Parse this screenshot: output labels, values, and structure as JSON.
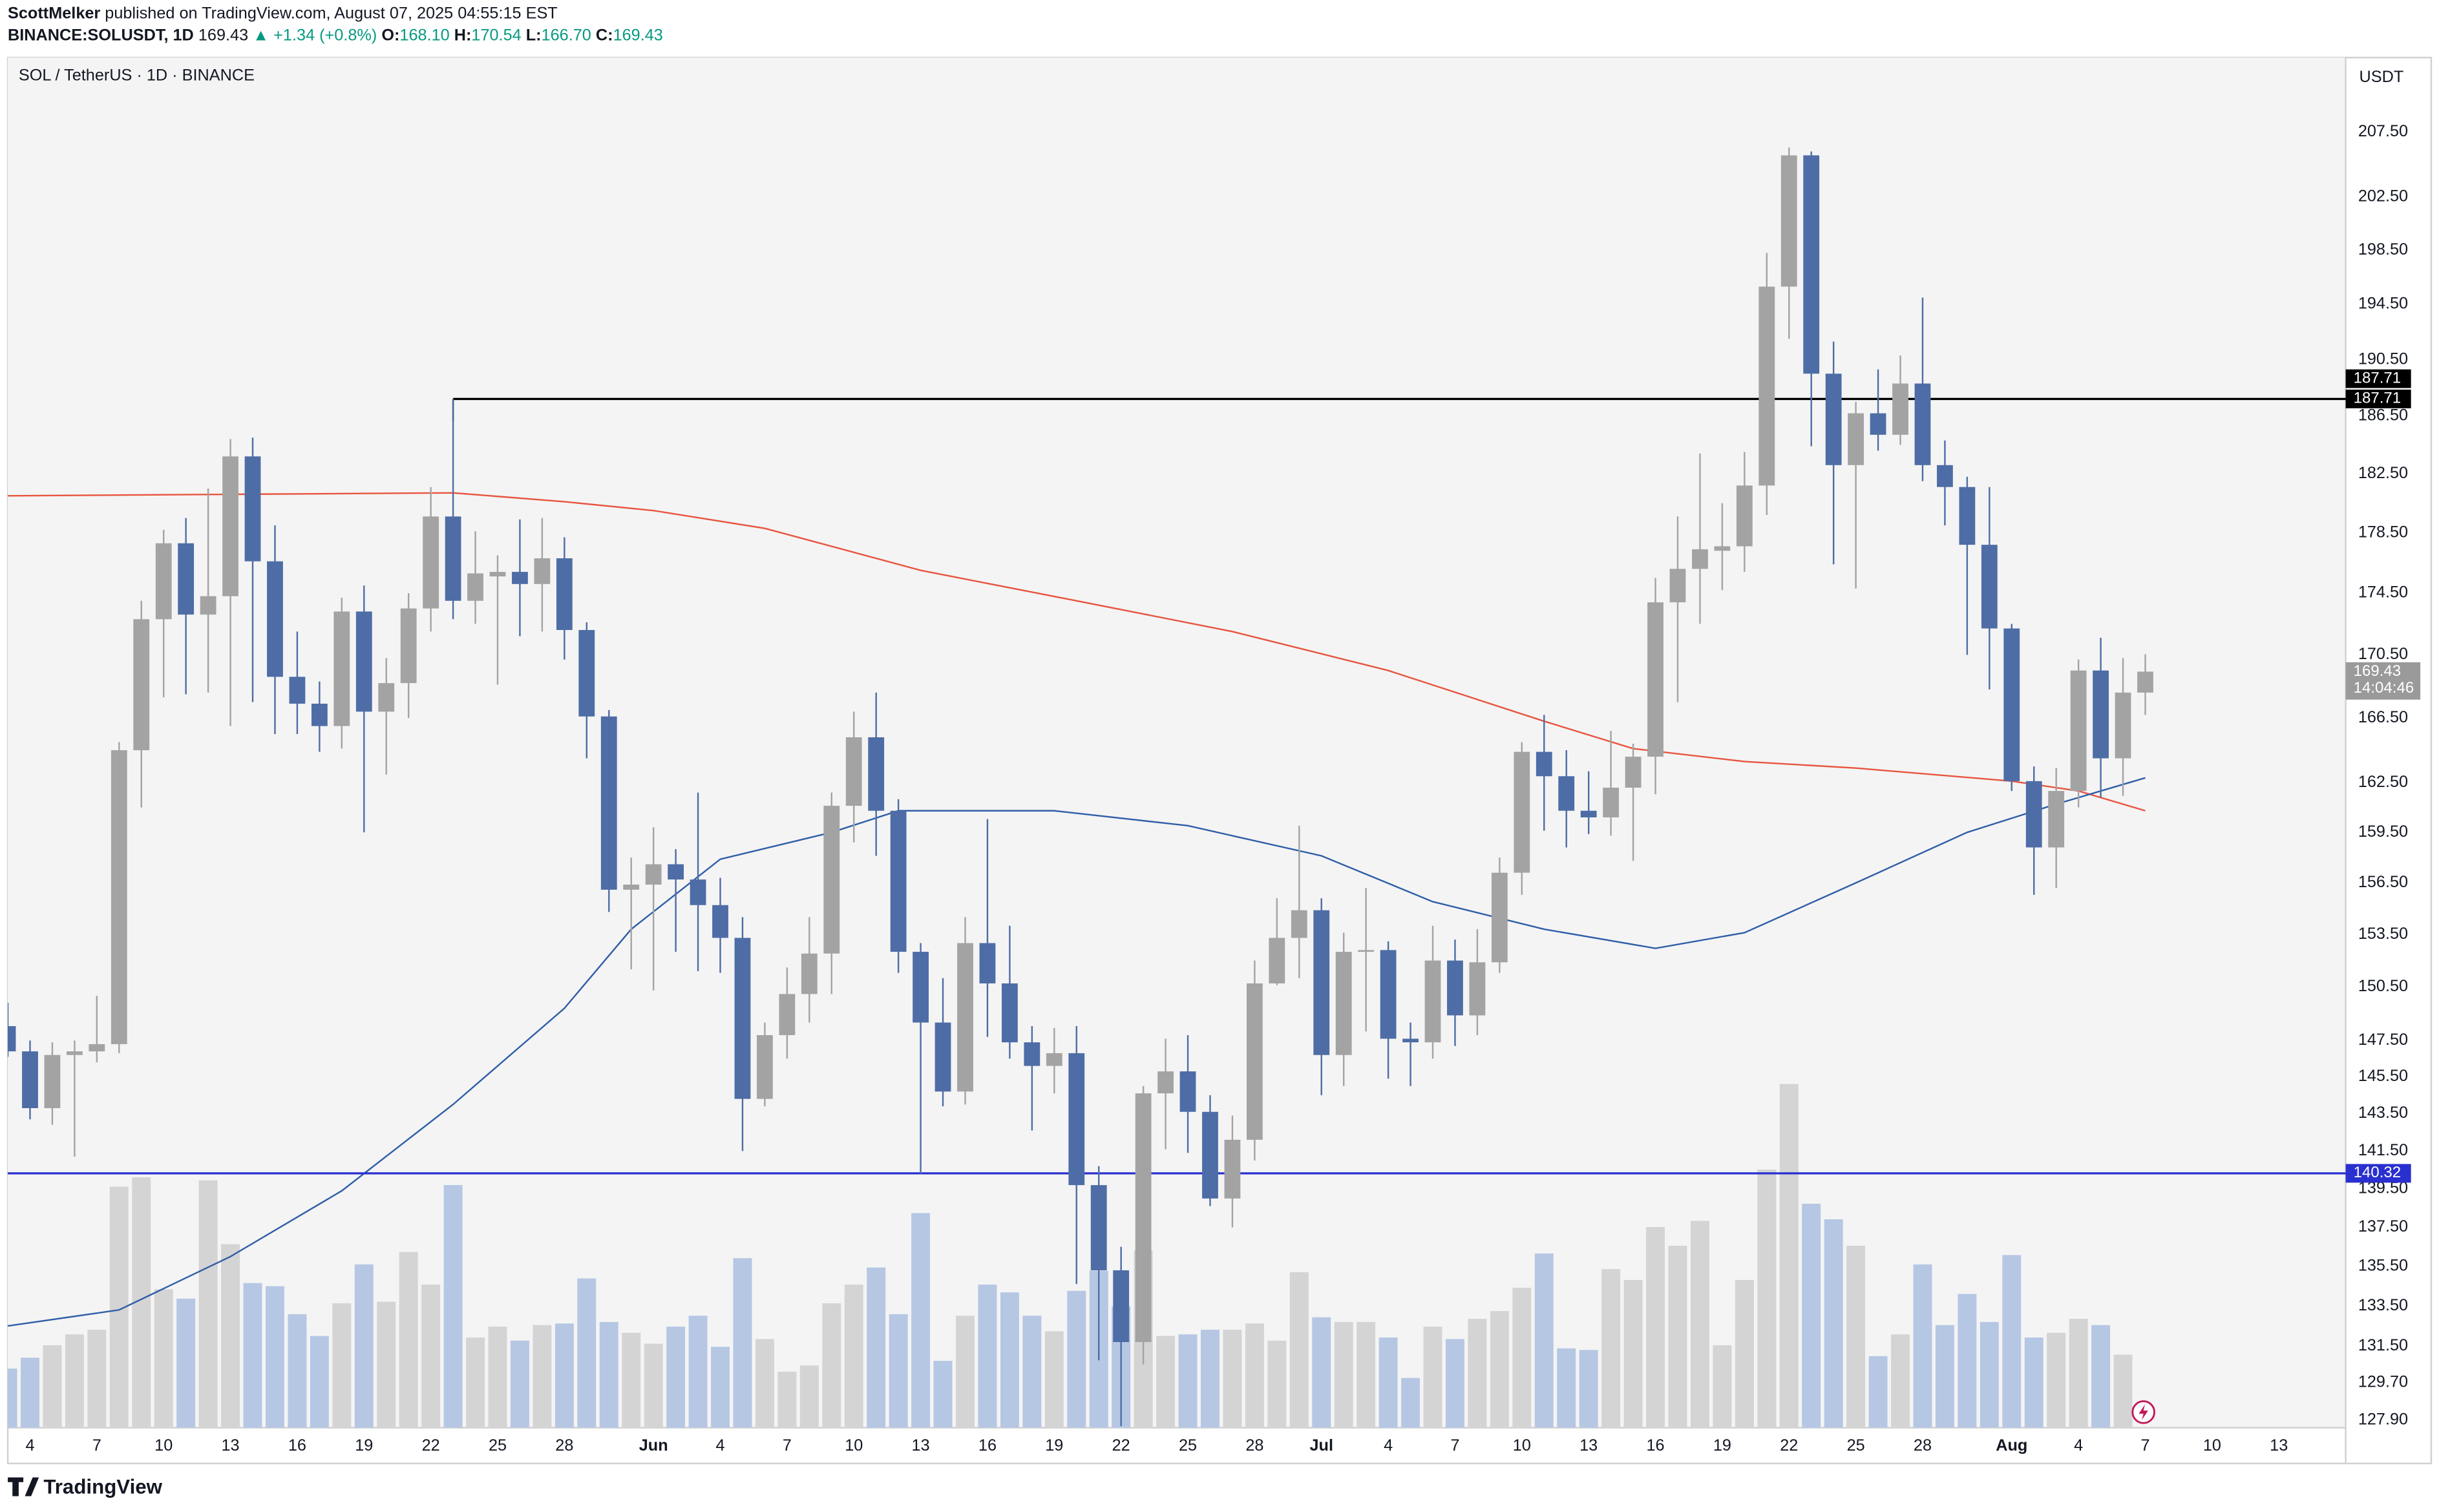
{
  "header": {
    "author": "ScottMelker",
    "published": "published on TradingView.com, August 07, 2025 04:55:15 EST",
    "symbol": "BINANCE:SOLUSDT, 1D",
    "last": "169.43",
    "change": "▲ +1.34 (+0.8%)",
    "ohlc": [
      {
        "label": "O:",
        "value": "168.10"
      },
      {
        "label": "H:",
        "value": "170.54"
      },
      {
        "label": "L:",
        "value": "166.70"
      },
      {
        "label": "C:",
        "value": "169.43"
      }
    ]
  },
  "chart_data": {
    "type": "candlestick",
    "title": "SOL / TetherUS · 1D · BINANCE",
    "axis_unit": "USDT",
    "x": [
      "2025-05-03",
      "2025-05-04",
      "2025-05-05",
      "2025-05-06",
      "2025-05-07",
      "2025-05-08",
      "2025-05-09",
      "2025-05-10",
      "2025-05-11",
      "2025-05-12",
      "2025-05-13",
      "2025-05-14",
      "2025-05-15",
      "2025-05-16",
      "2025-05-17",
      "2025-05-18",
      "2025-05-19",
      "2025-05-20",
      "2025-05-21",
      "2025-05-22",
      "2025-05-23",
      "2025-05-24",
      "2025-05-25",
      "2025-05-26",
      "2025-05-27",
      "2025-05-28",
      "2025-05-29",
      "2025-05-30",
      "2025-05-31",
      "2025-06-01",
      "2025-06-02",
      "2025-06-03",
      "2025-06-04",
      "2025-06-05",
      "2025-06-06",
      "2025-06-07",
      "2025-06-08",
      "2025-06-09",
      "2025-06-10",
      "2025-06-11",
      "2025-06-12",
      "2025-06-13",
      "2025-06-14",
      "2025-06-15",
      "2025-06-16",
      "2025-06-17",
      "2025-06-18",
      "2025-06-19",
      "2025-06-20",
      "2025-06-21",
      "2025-06-22",
      "2025-06-23",
      "2025-06-24",
      "2025-06-25",
      "2025-06-26",
      "2025-06-27",
      "2025-06-28",
      "2025-06-29",
      "2025-06-30",
      "2025-07-01",
      "2025-07-02",
      "2025-07-03",
      "2025-07-04",
      "2025-07-05",
      "2025-07-06",
      "2025-07-07",
      "2025-07-08",
      "2025-07-09",
      "2025-07-10",
      "2025-07-11",
      "2025-07-12",
      "2025-07-13",
      "2025-07-14",
      "2025-07-15",
      "2025-07-16",
      "2025-07-17",
      "2025-07-18",
      "2025-07-19",
      "2025-07-20",
      "2025-07-21",
      "2025-07-22",
      "2025-07-23",
      "2025-07-24",
      "2025-07-25",
      "2025-07-26",
      "2025-07-27",
      "2025-07-28",
      "2025-07-29",
      "2025-07-30",
      "2025-07-31",
      "2025-08-01",
      "2025-08-02",
      "2025-08-03",
      "2025-08-04",
      "2025-08-05",
      "2025-08-06",
      "2025-08-07"
    ],
    "open": [
      148.3,
      146.9,
      143.8,
      146.7,
      146.9,
      147.3,
      164.5,
      172.8,
      177.8,
      173.1,
      174.3,
      183.7,
      176.6,
      169.1,
      167.4,
      166.0,
      173.3,
      166.9,
      168.7,
      173.5,
      179.6,
      174.0,
      175.6,
      175.9,
      175.1,
      176.8,
      172.1,
      166.6,
      156.1,
      156.4,
      157.6,
      156.7,
      155.2,
      153.3,
      144.3,
      147.8,
      150.1,
      152.4,
      161.1,
      165.3,
      160.8,
      152.5,
      148.5,
      144.7,
      153.0,
      150.7,
      147.4,
      146.1,
      146.8,
      139.7,
      135.3,
      131.7,
      144.6,
      145.8,
      143.6,
      139.0,
      142.1,
      150.7,
      153.3,
      154.9,
      146.7,
      152.5,
      152.6,
      147.6,
      147.4,
      152.0,
      148.9,
      151.9,
      157.1,
      164.4,
      162.9,
      160.8,
      160.4,
      162.2,
      164.1,
      173.9,
      176.1,
      177.3,
      177.6,
      181.7,
      195.8,
      205.7,
      189.5,
      183.1,
      186.7,
      185.2,
      188.8,
      183.1,
      181.6,
      177.7,
      172.2,
      162.6,
      158.6,
      162.0,
      169.5,
      164.0,
      168.1
    ],
    "high": [
      149.6,
      147.5,
      147.4,
      147.5,
      150.0,
      165.0,
      174.0,
      178.7,
      179.5,
      181.5,
      184.9,
      185.0,
      179.0,
      172.0,
      168.8,
      174.2,
      175.0,
      170.3,
      174.5,
      181.6,
      187.71,
      178.6,
      177.0,
      179.4,
      179.5,
      178.2,
      172.6,
      167.0,
      158.0,
      159.8,
      158.5,
      161.9,
      156.8,
      154.5,
      148.5,
      151.6,
      154.5,
      161.9,
      166.9,
      168.1,
      161.5,
      153.0,
      151.0,
      154.5,
      160.3,
      154.0,
      148.3,
      148.2,
      148.3,
      140.7,
      136.5,
      145.0,
      147.6,
      147.8,
      144.5,
      143.4,
      152.0,
      155.6,
      159.9,
      155.6,
      153.6,
      156.2,
      153.1,
      148.5,
      154.0,
      153.2,
      153.8,
      158.0,
      165.0,
      166.7,
      164.5,
      163.2,
      165.7,
      164.9,
      175.5,
      179.6,
      183.9,
      180.5,
      184.0,
      198.3,
      206.3,
      206.0,
      191.8,
      187.5,
      189.8,
      190.8,
      195.0,
      184.8,
      182.3,
      181.6,
      172.5,
      163.5,
      163.4,
      170.2,
      171.6,
      170.3,
      170.54
    ],
    "low": [
      146.6,
      143.2,
      142.9,
      141.2,
      146.3,
      146.8,
      161.0,
      167.8,
      168.0,
      168.1,
      166.0,
      167.5,
      165.5,
      165.5,
      164.4,
      164.6,
      159.5,
      163.0,
      166.5,
      172.0,
      172.8,
      172.5,
      168.6,
      171.7,
      172.0,
      170.2,
      164.0,
      154.8,
      151.5,
      150.3,
      152.5,
      151.4,
      151.3,
      141.5,
      143.9,
      146.5,
      148.5,
      150.1,
      158.9,
      158.1,
      151.3,
      140.3,
      143.9,
      144.0,
      147.7,
      146.5,
      142.6,
      144.6,
      134.6,
      130.8,
      127.6,
      130.6,
      141.6,
      141.4,
      138.6,
      137.5,
      141.0,
      150.6,
      151.0,
      144.5,
      145.0,
      148.0,
      145.4,
      145.0,
      146.5,
      147.2,
      147.8,
      151.3,
      155.8,
      159.6,
      158.6,
      159.4,
      159.3,
      157.8,
      161.8,
      167.5,
      172.5,
      174.7,
      175.9,
      179.7,
      192.0,
      184.4,
      176.4,
      174.8,
      184.1,
      184.5,
      182.0,
      179.0,
      170.5,
      168.3,
      162.0,
      155.8,
      156.2,
      161.0,
      161.6,
      161.7,
      166.7
    ],
    "close": [
      146.9,
      143.8,
      146.7,
      146.9,
      147.3,
      164.5,
      172.8,
      177.8,
      173.1,
      174.3,
      183.7,
      176.6,
      169.1,
      167.4,
      166.0,
      173.3,
      166.9,
      168.7,
      173.5,
      179.6,
      174.0,
      175.8,
      175.9,
      175.1,
      176.8,
      172.1,
      166.6,
      156.1,
      156.4,
      157.6,
      156.7,
      155.2,
      153.3,
      144.3,
      147.8,
      150.1,
      152.4,
      161.1,
      165.3,
      160.8,
      152.5,
      148.5,
      144.7,
      153.0,
      150.7,
      147.4,
      146.1,
      146.8,
      139.7,
      135.3,
      131.7,
      144.6,
      145.8,
      143.6,
      139.0,
      142.1,
      150.7,
      153.3,
      154.9,
      146.7,
      152.5,
      152.6,
      147.6,
      147.4,
      152.0,
      148.9,
      151.9,
      157.1,
      164.4,
      162.9,
      160.8,
      160.4,
      162.2,
      164.1,
      173.9,
      176.1,
      177.4,
      177.6,
      181.7,
      195.8,
      205.7,
      189.5,
      183.1,
      186.7,
      185.2,
      188.8,
      183.1,
      181.6,
      177.7,
      172.2,
      162.6,
      158.6,
      162.0,
      169.5,
      164.0,
      168.1,
      169.43
    ],
    "volume": [
      38,
      45,
      53,
      60,
      63,
      155,
      161,
      89,
      83,
      159,
      118,
      93,
      91,
      73,
      59,
      80,
      105,
      81,
      113,
      92,
      156,
      58,
      65,
      56,
      66,
      67,
      96,
      68,
      61,
      54,
      65,
      72,
      52,
      109,
      57,
      36,
      40,
      80,
      92,
      103,
      73,
      138,
      43,
      72,
      92,
      87,
      72,
      62,
      88,
      101,
      78,
      114,
      59,
      60,
      63,
      63,
      67,
      56,
      100,
      71,
      68,
      68,
      58,
      32,
      65,
      57,
      70,
      75,
      90,
      112,
      51,
      50,
      102,
      95,
      129,
      117,
      133,
      53,
      95,
      166,
      221,
      144,
      134,
      117,
      46,
      60,
      105,
      66,
      86,
      68,
      111,
      58,
      61,
      70,
      66,
      47,
      null
    ],
    "volume_lim": [
      0,
      881
    ],
    "up_color": "#a3a3a3",
    "down_color": "#4e6da6",
    "volume_up_color": "#d4d4d4",
    "volume_down_color": "#b6c7e4",
    "log_scale": true,
    "ylim": [
      127.53,
      213.4
    ],
    "yticks": [
      {
        "value": 127.9,
        "label": "127.90"
      },
      {
        "value": 129.7,
        "label": "129.70"
      },
      {
        "value": 131.5,
        "label": "131.50"
      },
      {
        "value": 133.5,
        "label": "133.50"
      },
      {
        "value": 135.5,
        "label": "135.50"
      },
      {
        "value": 137.5,
        "label": "137.50"
      },
      {
        "value": 139.5,
        "label": "139.50"
      },
      {
        "value": 141.5,
        "label": "141.50"
      },
      {
        "value": 143.5,
        "label": "143.50"
      },
      {
        "value": 145.5,
        "label": "145.50"
      },
      {
        "value": 147.5,
        "label": "147.50"
      },
      {
        "value": 150.5,
        "label": "150.50"
      },
      {
        "value": 153.5,
        "label": "153.50"
      },
      {
        "value": 156.5,
        "label": "156.50"
      },
      {
        "value": 159.5,
        "label": "159.50"
      },
      {
        "value": 162.5,
        "label": "162.50"
      },
      {
        "value": 166.5,
        "label": "166.50"
      },
      {
        "value": 170.5,
        "label": "170.50"
      },
      {
        "value": 174.5,
        "label": "174.50"
      },
      {
        "value": 178.5,
        "label": "178.50"
      },
      {
        "value": 182.5,
        "label": "182.50"
      },
      {
        "value": 186.5,
        "label": "186.50"
      },
      {
        "value": 190.5,
        "label": "190.50"
      },
      {
        "value": 194.5,
        "label": "194.50"
      },
      {
        "value": 198.5,
        "label": "198.50"
      },
      {
        "value": 202.5,
        "label": "202.50"
      },
      {
        "value": 207.5,
        "label": "207.50"
      }
    ],
    "xlim": [
      "2025-05-03",
      "2025-08-16"
    ],
    "xticks": [
      {
        "value": "2025-05-04",
        "label": "4"
      },
      {
        "value": "2025-05-07",
        "label": "7"
      },
      {
        "value": "2025-05-10",
        "label": "10"
      },
      {
        "value": "2025-05-13",
        "label": "13"
      },
      {
        "value": "2025-05-16",
        "label": "16"
      },
      {
        "value": "2025-05-19",
        "label": "19"
      },
      {
        "value": "2025-05-22",
        "label": "22"
      },
      {
        "value": "2025-05-25",
        "label": "25"
      },
      {
        "value": "2025-05-28",
        "label": "28"
      },
      {
        "value": "2025-06-01",
        "label": "Jun"
      },
      {
        "value": "2025-06-04",
        "label": "4"
      },
      {
        "value": "2025-06-07",
        "label": "7"
      },
      {
        "value": "2025-06-10",
        "label": "10"
      },
      {
        "value": "2025-06-13",
        "label": "13"
      },
      {
        "value": "2025-06-16",
        "label": "16"
      },
      {
        "value": "2025-06-19",
        "label": "19"
      },
      {
        "value": "2025-06-22",
        "label": "22"
      },
      {
        "value": "2025-06-25",
        "label": "25"
      },
      {
        "value": "2025-06-28",
        "label": "28"
      },
      {
        "value": "2025-07-01",
        "label": "Jul"
      },
      {
        "value": "2025-07-04",
        "label": "4"
      },
      {
        "value": "2025-07-07",
        "label": "7"
      },
      {
        "value": "2025-07-10",
        "label": "10"
      },
      {
        "value": "2025-07-13",
        "label": "13"
      },
      {
        "value": "2025-07-16",
        "label": "16"
      },
      {
        "value": "2025-07-19",
        "label": "19"
      },
      {
        "value": "2025-07-22",
        "label": "22"
      },
      {
        "value": "2025-07-25",
        "label": "25"
      },
      {
        "value": "2025-07-28",
        "label": "28"
      },
      {
        "value": "2025-08-01",
        "label": "Aug"
      },
      {
        "value": "2025-08-04",
        "label": "4"
      },
      {
        "value": "2025-08-07",
        "label": "7"
      },
      {
        "value": "2025-08-10",
        "label": "10"
      },
      {
        "value": "2025-08-13",
        "label": "13"
      }
    ],
    "lines": [
      {
        "color": "#e8553f",
        "x": [
          "2025-05-03",
          "2025-05-13",
          "2025-05-23",
          "2025-05-28",
          "2025-06-01",
          "2025-06-06",
          "2025-06-13",
          "2025-06-20",
          "2025-06-27",
          "2025-07-04",
          "2025-07-11",
          "2025-07-15",
          "2025-07-20",
          "2025-07-25",
          "2025-08-01",
          "2025-08-04",
          "2025-08-07"
        ],
        "values": [
          181.0,
          181.1,
          181.2,
          180.6,
          180.0,
          178.8,
          176.0,
          174.0,
          172.0,
          169.5,
          166.3,
          164.6,
          163.8,
          163.4,
          162.6,
          162.0,
          160.8
        ]
      },
      {
        "color": "#2f5ea8",
        "x": [
          "2025-05-03",
          "2025-05-08",
          "2025-05-13",
          "2025-05-18",
          "2025-05-23",
          "2025-05-28",
          "2025-05-31",
          "2025-06-04",
          "2025-06-09",
          "2025-06-12",
          "2025-06-19",
          "2025-06-25",
          "2025-07-01",
          "2025-07-06",
          "2025-07-11",
          "2025-07-16",
          "2025-07-20",
          "2025-07-25",
          "2025-07-30",
          "2025-08-03",
          "2025-08-07"
        ],
        "values": [
          132.5,
          133.3,
          136.0,
          139.4,
          144.0,
          149.3,
          153.8,
          157.9,
          159.5,
          160.8,
          160.8,
          159.9,
          158.1,
          155.4,
          153.8,
          152.7,
          153.6,
          156.5,
          159.5,
          161.2,
          162.8
        ]
      }
    ],
    "hlines": [
      {
        "value": 187.71,
        "label": "187.71",
        "color": "#000000",
        "start": "2025-05-23"
      },
      {
        "value": 140.32,
        "label": "140.32",
        "color": "#2a2fd0"
      }
    ],
    "last_price": {
      "value": 169.43,
      "label": "169.43",
      "countdown": "14:04:46"
    }
  }
}
